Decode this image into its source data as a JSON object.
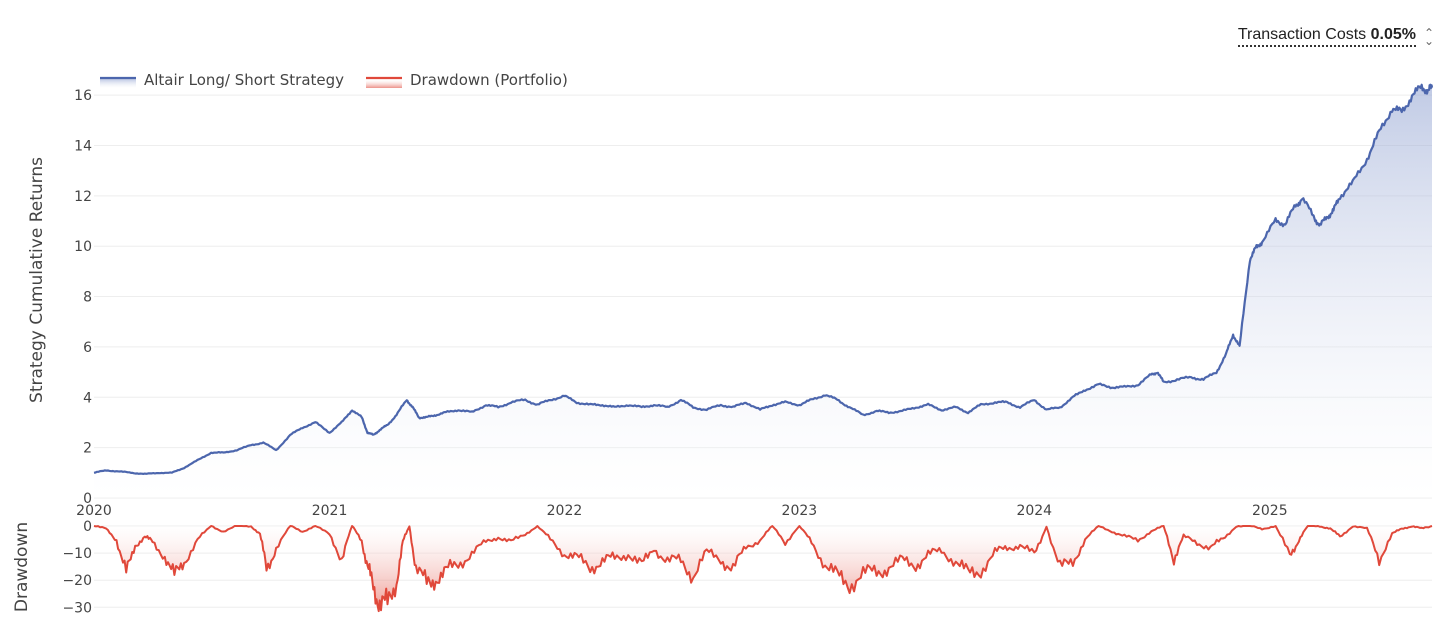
{
  "controls": {
    "transaction_costs_label": "Transaction Costs",
    "transaction_costs_value": "0.05%",
    "selector_icon": "up-down-chevron-icon"
  },
  "chart_data": [
    {
      "type": "area",
      "title": "",
      "ylabel": "Strategy Cumulative Returns",
      "xlabel": "",
      "x_ticks": [
        "2020",
        "2021",
        "2022",
        "2023",
        "2024",
        "2025"
      ],
      "y_ticks": [
        0,
        2,
        4,
        6,
        8,
        10,
        12,
        14,
        16
      ],
      "ylim": [
        0,
        16.6
      ],
      "xlim": [
        "2020-01-01",
        "2025-09-10"
      ],
      "legend_placement": "top-left",
      "grid": true,
      "series": [
        {
          "name": "Altair Long/ Short Strategy",
          "color": "#4c66ad",
          "x": [
            "2020-01-01",
            "2020-01-20",
            "2020-02-10",
            "2020-03-01",
            "2020-03-20",
            "2020-04-10",
            "2020-05-01",
            "2020-05-20",
            "2020-06-10",
            "2020-07-01",
            "2020-07-20",
            "2020-08-10",
            "2020-09-01",
            "2020-09-20",
            "2020-10-10",
            "2020-11-01",
            "2020-11-20",
            "2020-12-10",
            "2021-01-01",
            "2021-01-20",
            "2021-02-05",
            "2021-02-20",
            "2021-03-01",
            "2021-03-10",
            "2021-03-20",
            "2021-04-01",
            "2021-04-15",
            "2021-05-01",
            "2021-05-10",
            "2021-05-20",
            "2021-06-01",
            "2021-06-15",
            "2021-07-01",
            "2021-07-20",
            "2021-08-10",
            "2021-09-01",
            "2021-09-20",
            "2021-10-10",
            "2021-11-01",
            "2021-11-20",
            "2021-12-10",
            "2022-01-01",
            "2022-01-20",
            "2022-02-10",
            "2022-03-01",
            "2022-03-20",
            "2022-04-10",
            "2022-05-01",
            "2022-05-20",
            "2022-06-10",
            "2022-07-01",
            "2022-07-20",
            "2022-08-10",
            "2022-09-01",
            "2022-09-20",
            "2022-10-10",
            "2022-11-01",
            "2022-11-20",
            "2022-12-10",
            "2023-01-01",
            "2023-01-20",
            "2023-02-10",
            "2023-03-01",
            "2023-03-20",
            "2023-04-10",
            "2023-05-01",
            "2023-05-20",
            "2023-06-10",
            "2023-07-01",
            "2023-07-20",
            "2023-08-10",
            "2023-09-01",
            "2023-09-20",
            "2023-10-10",
            "2023-11-01",
            "2023-11-20",
            "2023-12-10",
            "2024-01-01",
            "2024-01-20",
            "2024-02-10",
            "2024-03-01",
            "2024-03-20",
            "2024-04-10",
            "2024-05-01",
            "2024-05-20",
            "2024-06-10",
            "2024-07-01",
            "2024-07-10",
            "2024-07-20",
            "2024-08-10",
            "2024-09-01",
            "2024-09-20",
            "2024-10-10",
            "2024-10-25",
            "2024-11-05",
            "2024-11-15",
            "2024-12-01",
            "2024-12-10",
            "2024-12-20",
            "2025-01-10",
            "2025-01-25",
            "2025-02-10",
            "2025-02-20",
            "2025-03-10",
            "2025-03-20",
            "2025-04-01",
            "2025-04-10",
            "2025-04-20",
            "2025-05-10",
            "2025-06-01",
            "2025-06-20",
            "2025-07-10",
            "2025-07-25",
            "2025-08-10",
            "2025-08-25",
            "2025-09-05",
            "2025-09-10"
          ],
          "values": [
            1.0,
            1.1,
            1.05,
            1.0,
            0.95,
            1.0,
            1.0,
            1.2,
            1.5,
            1.8,
            1.8,
            1.9,
            2.1,
            2.2,
            1.9,
            2.5,
            2.8,
            3.0,
            2.6,
            3.0,
            3.5,
            3.2,
            2.6,
            2.5,
            2.7,
            2.9,
            3.3,
            3.9,
            3.6,
            3.2,
            3.2,
            3.3,
            3.4,
            3.5,
            3.4,
            3.7,
            3.6,
            3.8,
            3.9,
            3.7,
            3.9,
            4.05,
            3.8,
            3.7,
            3.7,
            3.6,
            3.7,
            3.6,
            3.7,
            3.6,
            3.9,
            3.6,
            3.5,
            3.7,
            3.6,
            3.8,
            3.5,
            3.7,
            3.8,
            3.7,
            3.9,
            4.1,
            3.9,
            3.6,
            3.3,
            3.45,
            3.4,
            3.45,
            3.6,
            3.7,
            3.5,
            3.6,
            3.4,
            3.7,
            3.8,
            3.8,
            3.6,
            3.9,
            3.5,
            3.6,
            4.0,
            4.3,
            4.5,
            4.4,
            4.4,
            4.5,
            4.9,
            5.0,
            4.6,
            4.7,
            4.8,
            4.7,
            5.0,
            5.7,
            6.5,
            6.0,
            9.5,
            9.9,
            10.2,
            11.0,
            10.9,
            11.6,
            11.9,
            11.2,
            10.8,
            11.2,
            11.4,
            12.0,
            12.5,
            13.5,
            14.5,
            15.5,
            15.3,
            16.0,
            16.3,
            16.2,
            16.3
          ]
        }
      ]
    },
    {
      "type": "area",
      "title": "",
      "ylabel": "Drawdown",
      "xlabel": "",
      "y_ticks": [
        0,
        -10,
        -20,
        -30
      ],
      "ylim": [
        -31,
        0
      ],
      "xlim": [
        "2020-01-01",
        "2025-09-10"
      ],
      "grid": true,
      "series": [
        {
          "name": "Drawdown (Portfolio)",
          "color": "#e0483a",
          "x": [
            "2020-01-01",
            "2020-01-20",
            "2020-02-05",
            "2020-02-20",
            "2020-03-05",
            "2020-03-20",
            "2020-04-01",
            "2020-04-20",
            "2020-05-05",
            "2020-05-20",
            "2020-06-10",
            "2020-07-01",
            "2020-07-20",
            "2020-08-10",
            "2020-09-01",
            "2020-09-15",
            "2020-09-25",
            "2020-10-10",
            "2020-11-01",
            "2020-11-20",
            "2020-12-10",
            "2021-01-01",
            "2021-01-20",
            "2021-02-05",
            "2021-02-20",
            "2021-03-01",
            "2021-03-10",
            "2021-03-20",
            "2021-04-01",
            "2021-04-15",
            "2021-04-25",
            "2021-05-05",
            "2021-05-15",
            "2021-06-01",
            "2021-06-15",
            "2021-07-01",
            "2021-07-20",
            "2021-08-10",
            "2021-09-01",
            "2021-09-20",
            "2021-10-10",
            "2021-11-01",
            "2021-11-20",
            "2021-12-10",
            "2022-01-01",
            "2022-01-20",
            "2022-02-10",
            "2022-03-01",
            "2022-03-20",
            "2022-04-10",
            "2022-05-01",
            "2022-05-20",
            "2022-06-10",
            "2022-07-01",
            "2022-07-20",
            "2022-08-10",
            "2022-09-01",
            "2022-09-20",
            "2022-10-10",
            "2022-11-01",
            "2022-11-20",
            "2022-12-10",
            "2023-01-01",
            "2023-01-20",
            "2023-02-10",
            "2023-03-01",
            "2023-03-20",
            "2023-04-10",
            "2023-05-01",
            "2023-05-20",
            "2023-06-10",
            "2023-07-01",
            "2023-07-20",
            "2023-08-10",
            "2023-09-01",
            "2023-09-20",
            "2023-10-10",
            "2023-11-01",
            "2023-11-20",
            "2023-12-10",
            "2024-01-01",
            "2024-01-20",
            "2024-02-10",
            "2024-03-01",
            "2024-03-20",
            "2024-04-10",
            "2024-05-01",
            "2024-05-20",
            "2024-06-10",
            "2024-07-01",
            "2024-07-20",
            "2024-08-05",
            "2024-08-20",
            "2024-09-10",
            "2024-10-01",
            "2024-10-20",
            "2024-11-10",
            "2024-12-01",
            "2024-12-20",
            "2025-01-10",
            "2025-02-01",
            "2025-02-15",
            "2025-03-01",
            "2025-03-20",
            "2025-04-05",
            "2025-04-20",
            "2025-05-10",
            "2025-06-01",
            "2025-06-20",
            "2025-07-10",
            "2025-07-25",
            "2025-08-10",
            "2025-08-25",
            "2025-09-10"
          ],
          "values": [
            0,
            -1,
            -5,
            -18,
            -7,
            -4,
            -6,
            -11,
            -19,
            -13,
            -5,
            0,
            -2,
            0,
            0,
            -3,
            -16,
            -8,
            0,
            -2,
            0,
            -3,
            -12,
            0,
            -5,
            -16,
            -22,
            -28,
            -30,
            -20,
            -6,
            0,
            -15,
            -22,
            -19,
            -17,
            -14,
            -10,
            -6,
            -4,
            -6,
            -3,
            0,
            -5,
            -10,
            -12,
            -15,
            -13,
            -12,
            -10,
            -15,
            -8,
            -13,
            -13,
            -18,
            -10,
            -12,
            -16,
            -8,
            -5,
            0,
            -6,
            0,
            -6,
            -14,
            -19,
            -21,
            -18,
            -17,
            -15,
            -13,
            -14,
            -11,
            -9,
            -13,
            -18,
            -16,
            -10,
            -8,
            -7,
            -11,
            0,
            -16,
            -13,
            -5,
            0,
            -2,
            -4,
            -5,
            -2,
            0,
            -12,
            -4,
            -6,
            -8,
            -5,
            0,
            0,
            -1,
            0,
            -11,
            -5,
            0,
            0,
            -1,
            -4,
            0,
            -1,
            -12,
            -3,
            -1,
            0,
            -1,
            0
          ]
        }
      ]
    }
  ]
}
